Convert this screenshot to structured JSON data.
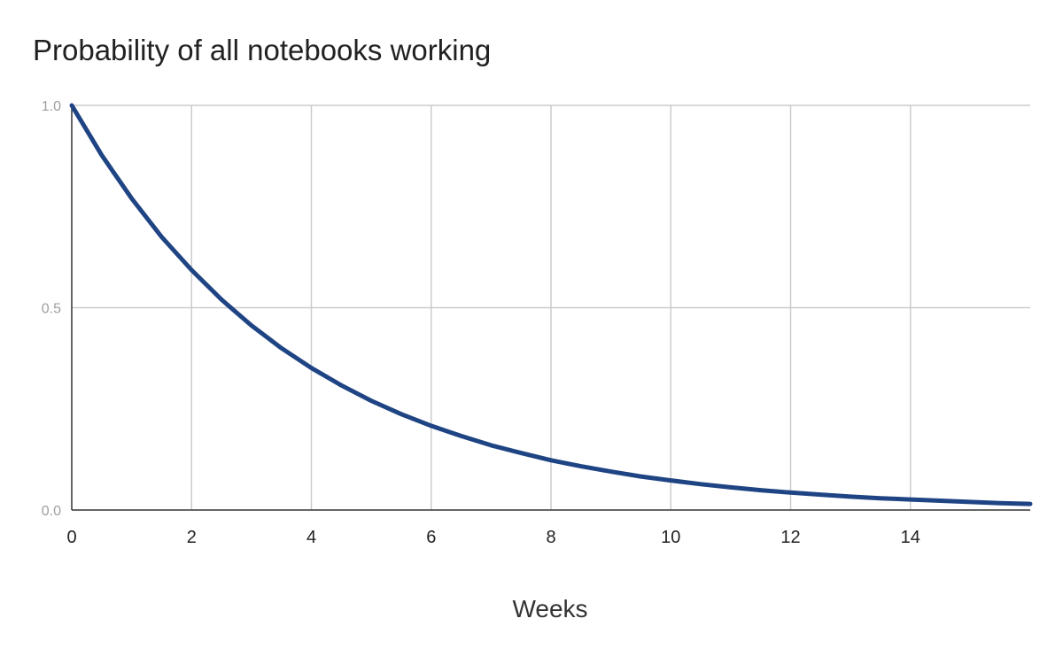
{
  "chart_data": {
    "type": "line",
    "title": "Probability of all notebooks working",
    "xlabel": "Weeks",
    "ylabel": "",
    "xlim": [
      0,
      16
    ],
    "ylim": [
      0,
      1
    ],
    "x_ticks": [
      0,
      2,
      4,
      6,
      8,
      10,
      12,
      14
    ],
    "x_tick_labels": [
      "0",
      "2",
      "4",
      "6",
      "8",
      "10",
      "12",
      "14"
    ],
    "y_ticks": [
      0,
      0.5,
      1
    ],
    "y_tick_labels": [
      "0.0",
      "0.5",
      "1.0"
    ],
    "grid": true,
    "legend": "none",
    "series": [
      {
        "color": "#1f4484",
        "x": [
          0,
          0.5,
          1,
          1.5,
          2,
          2.5,
          3,
          3.5,
          4,
          4.5,
          5,
          5.5,
          6,
          6.5,
          7,
          7.5,
          8,
          8.5,
          9,
          9.5,
          10,
          10.5,
          11,
          11.5,
          12,
          12.5,
          13,
          13.5,
          14,
          14.5,
          15,
          15.5,
          16
        ],
        "y": [
          1.0,
          0.877,
          0.77,
          0.675,
          0.593,
          0.52,
          0.456,
          0.4,
          0.351,
          0.308,
          0.27,
          0.237,
          0.208,
          0.183,
          0.16,
          0.141,
          0.123,
          0.108,
          0.095,
          0.083,
          0.073,
          0.064,
          0.056,
          0.049,
          0.043,
          0.038,
          0.033,
          0.029,
          0.026,
          0.023,
          0.02,
          0.017,
          0.015
        ]
      }
    ]
  },
  "colors": {
    "line": "#1f4484",
    "grid": "#cccccc",
    "axis": "#333333"
  }
}
